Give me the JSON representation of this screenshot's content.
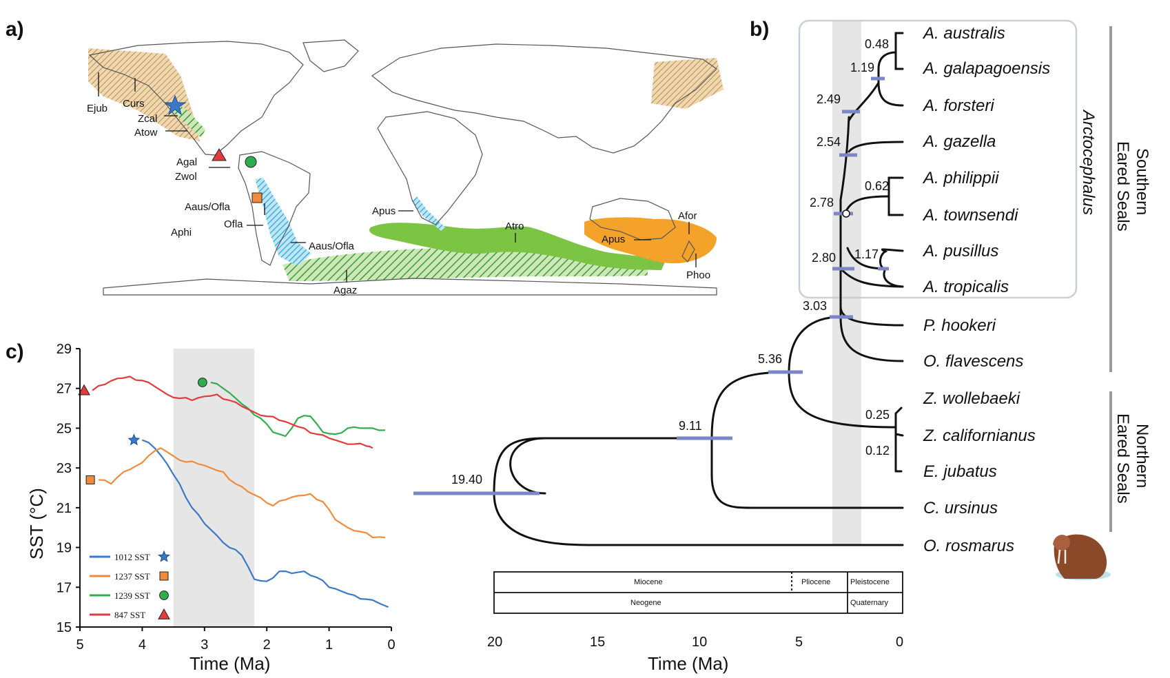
{
  "panels": {
    "a": "a)",
    "b": "b)",
    "c": "c)"
  },
  "colors": {
    "sst_1012": "#3a78c9",
    "sst_1237": "#f08a3c",
    "sst_1239": "#2eae50",
    "sst_847": "#e23b3b",
    "range_green": "#7cc444",
    "range_orange": "#f5a22a",
    "range_tan": "#f4d7a8",
    "range_blue": "#2aa6d9",
    "ci_bar": "#7a86c8",
    "shade": "#e6e6e6"
  },
  "map": {
    "labels": [
      "Ejub",
      "Curs",
      "Zcal",
      "Atow",
      "Agal",
      "Zwol",
      "Aaus/Ofla",
      "Aphi",
      "Ofla",
      "Aaus/Ofla",
      "Apus",
      "Atro",
      "Agaz",
      "Apus",
      "Afor",
      "Phoo"
    ],
    "markers": [
      "star",
      "triangle",
      "circle",
      "square"
    ]
  },
  "tree": {
    "taxa": [
      "A. australis",
      "A. galapagoensis",
      "A. forsteri",
      "A. gazella",
      "A. philippii",
      "A. townsendi",
      "A. pusillus",
      "A. tropicalis",
      "P. hookeri",
      "O. flavescens",
      "Z. wollebaeki",
      "Z. californianus",
      "E. jubatus",
      "C. ursinus",
      "O. rosmarus"
    ],
    "node_ages": [
      "0.48",
      "1.19",
      "2.49",
      "2.54",
      "0.62",
      "2.78",
      "1.17",
      "2.80",
      "3.03",
      "5.36",
      "9.11",
      "0.25",
      "0.12",
      "19.40"
    ],
    "genus_label": "Arctocephalus",
    "group_southern": [
      "Southern",
      "Eared Seals"
    ],
    "group_northern": [
      "Northern",
      "Eared Seals"
    ],
    "time_axis": {
      "ticks": [
        "20",
        "15",
        "10",
        "5",
        "0"
      ],
      "title": "Time (Ma)"
    },
    "epochs": [
      "Miocene",
      "Pliocene",
      "Pleistocene"
    ],
    "periods": [
      "Neogene",
      "Quaternary"
    ],
    "picture": "walrus"
  },
  "chart_data": {
    "type": "line",
    "title": "",
    "xlabel": "Time (Ma)",
    "ylabel": "SST (°C)",
    "xlim": [
      5,
      0
    ],
    "ylim": [
      15,
      29
    ],
    "xticks": [
      "5",
      "4",
      "3",
      "2",
      "1",
      "0"
    ],
    "yticks": [
      "15",
      "17",
      "19",
      "21",
      "23",
      "25",
      "27",
      "29"
    ],
    "shaded_interval": [
      3.5,
      2.2
    ],
    "legend_position": "bottom-left",
    "series": [
      {
        "name": "1012 SST",
        "marker": "star",
        "color": "#3a78c9",
        "x": [
          4.0,
          3.8,
          3.6,
          3.4,
          3.2,
          3.0,
          2.8,
          2.6,
          2.4,
          2.2,
          2.0,
          1.8,
          1.6,
          1.4,
          1.2,
          1.0,
          0.8,
          0.6,
          0.4,
          0.2,
          0.05
        ],
        "values": [
          24.4,
          24.0,
          23.2,
          22.2,
          21.0,
          20.2,
          19.6,
          19.0,
          18.6,
          17.4,
          17.3,
          17.8,
          17.7,
          17.8,
          17.5,
          17.0,
          16.8,
          16.6,
          16.4,
          16.2,
          16.0
        ]
      },
      {
        "name": "1237 SST",
        "marker": "square",
        "color": "#f08a3c",
        "x": [
          4.7,
          4.5,
          4.3,
          4.1,
          3.9,
          3.7,
          3.5,
          3.3,
          3.1,
          2.9,
          2.7,
          2.5,
          2.3,
          2.1,
          1.9,
          1.7,
          1.5,
          1.3,
          1.1,
          0.9,
          0.7,
          0.5,
          0.3,
          0.1
        ],
        "values": [
          22.4,
          22.2,
          22.8,
          23.1,
          23.6,
          24.0,
          23.6,
          23.3,
          23.2,
          23.0,
          22.8,
          22.2,
          21.8,
          21.5,
          21.1,
          21.4,
          21.6,
          21.7,
          21.3,
          20.4,
          20.0,
          19.8,
          19.5,
          19.5
        ]
      },
      {
        "name": "1239 SST",
        "marker": "circle",
        "color": "#2eae50",
        "x": [
          2.9,
          2.7,
          2.5,
          2.3,
          2.1,
          1.9,
          1.7,
          1.5,
          1.3,
          1.1,
          0.9,
          0.7,
          0.5,
          0.3,
          0.1
        ],
        "values": [
          27.3,
          27.0,
          26.5,
          26.0,
          25.5,
          24.8,
          24.6,
          25.5,
          25.6,
          24.8,
          24.7,
          25.0,
          25.0,
          25.0,
          24.9
        ]
      },
      {
        "name": "847 SST",
        "marker": "triangle",
        "color": "#e23b3b",
        "x": [
          4.8,
          4.6,
          4.4,
          4.2,
          4.0,
          3.8,
          3.6,
          3.4,
          3.2,
          3.0,
          2.8,
          2.6,
          2.4,
          2.2,
          2.0,
          1.8,
          1.6,
          1.4,
          1.2,
          1.0,
          0.8,
          0.6,
          0.4,
          0.3
        ],
        "values": [
          26.9,
          27.2,
          27.5,
          27.6,
          27.4,
          27.1,
          26.7,
          26.5,
          26.4,
          26.6,
          26.7,
          26.4,
          26.1,
          25.8,
          25.6,
          25.4,
          25.2,
          25.0,
          24.7,
          24.5,
          24.3,
          24.2,
          24.1,
          24.0
        ]
      }
    ]
  }
}
